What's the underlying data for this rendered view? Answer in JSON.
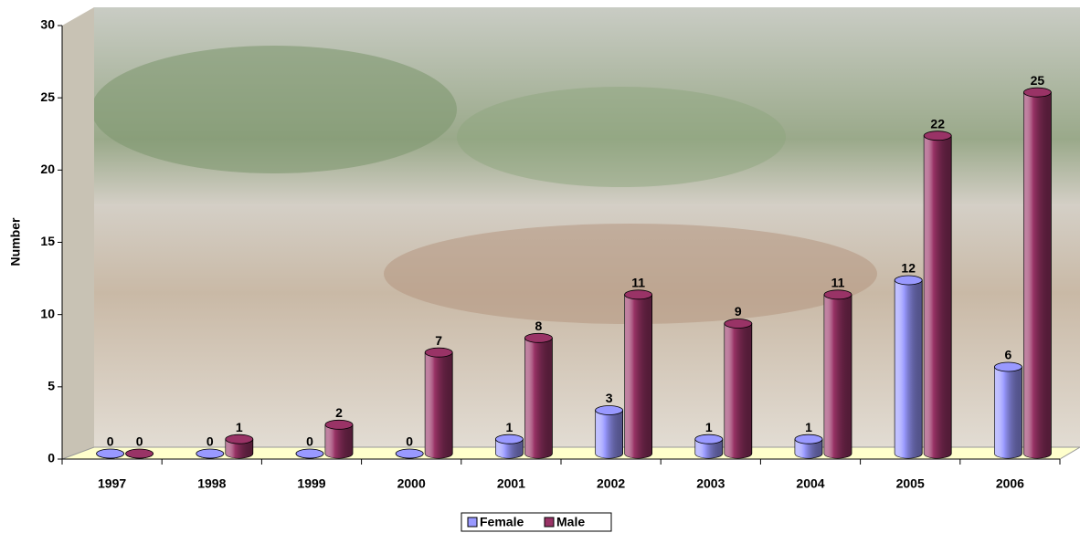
{
  "chart_data": {
    "type": "bar",
    "y_label": "Number",
    "categories": [
      "1997",
      "1998",
      "1999",
      "2000",
      "2001",
      "2002",
      "2003",
      "2004",
      "2005",
      "2006"
    ],
    "series": [
      {
        "name": "Female",
        "color": "#9999ff",
        "values": [
          0,
          0,
          0,
          0,
          1,
          3,
          1,
          1,
          12,
          6
        ]
      },
      {
        "name": "Male",
        "color": "#993366",
        "values": [
          0,
          1,
          2,
          7,
          8,
          11,
          9,
          11,
          22,
          25
        ]
      }
    ],
    "ylim": [
      0,
      30
    ],
    "yticks": [
      0,
      5,
      10,
      15,
      20,
      25,
      30
    ],
    "legend": "bottom"
  }
}
